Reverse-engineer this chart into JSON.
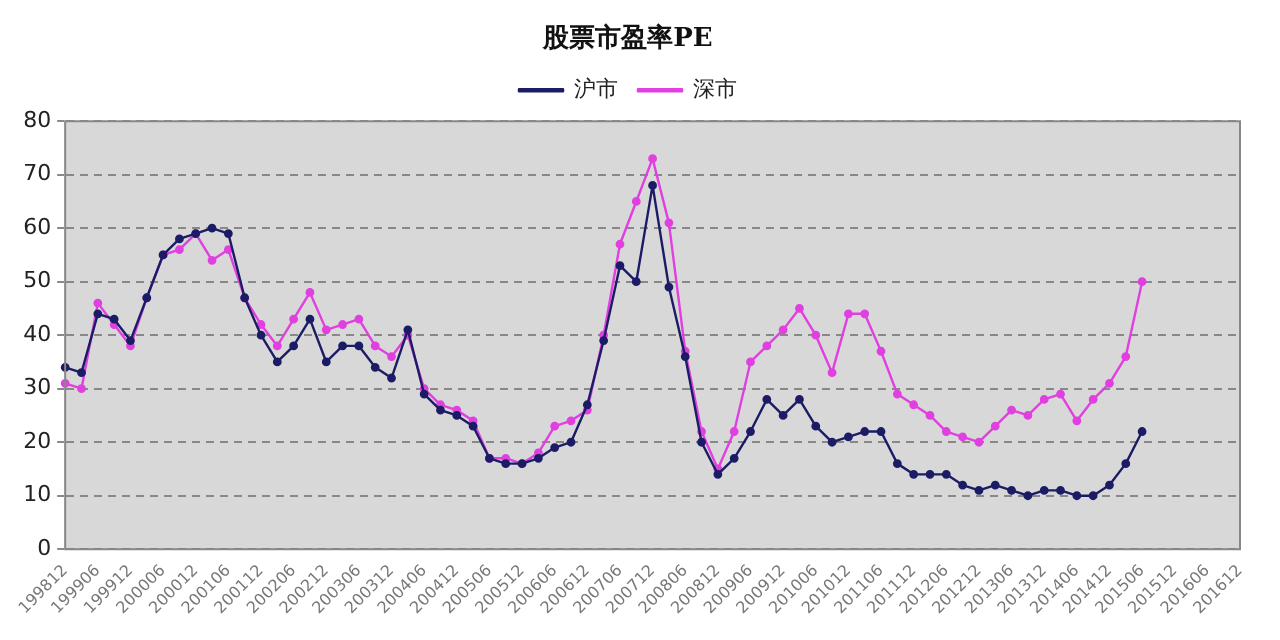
{
  "chart_data": {
    "type": "line",
    "title": "股票市盈率PE",
    "categories": [
      "199812",
      null,
      "199906",
      null,
      "199912",
      null,
      "200006",
      null,
      "200012",
      null,
      "200106",
      null,
      "200112",
      null,
      "200206",
      null,
      "200212",
      null,
      "200306",
      null,
      "200312",
      null,
      "200406",
      null,
      "200412",
      null,
      "200506",
      null,
      "200512",
      null,
      "200606",
      null,
      "200612",
      null,
      "200706",
      null,
      "200712",
      null,
      "200806",
      null,
      "200812",
      null,
      "200906",
      null,
      "200912",
      null,
      "201006",
      null,
      "201012",
      null,
      "201106",
      null,
      "201112",
      null,
      "201206",
      null,
      "201212",
      null,
      "201306",
      null,
      "201312",
      null,
      "201406",
      null,
      "201412",
      null,
      "201506",
      null,
      "201512",
      null,
      "201606",
      null,
      "201612"
    ],
    "series": [
      {
        "name": "沪市",
        "color": "#1c1c66",
        "values": [
          34,
          33,
          44,
          43,
          39,
          47,
          55,
          58,
          59,
          60,
          59,
          47,
          40,
          35,
          38,
          43,
          35,
          38,
          38,
          34,
          32,
          41,
          29,
          26,
          25,
          23,
          17,
          16,
          16,
          17,
          19,
          20,
          27,
          39,
          53,
          50,
          68,
          49,
          36,
          20,
          14,
          17,
          22,
          28,
          25,
          28,
          23,
          20,
          21,
          22,
          22,
          16,
          14,
          14,
          14,
          12,
          11,
          12,
          11,
          10,
          11,
          11,
          10,
          10,
          12,
          16,
          22,
          null,
          null,
          null,
          null,
          null,
          null
        ]
      },
      {
        "name": "深市",
        "color": "#e040e0",
        "values": [
          31,
          30,
          46,
          42,
          38,
          47,
          55,
          56,
          59,
          54,
          56,
          47,
          42,
          38,
          43,
          48,
          41,
          42,
          43,
          38,
          36,
          40,
          30,
          27,
          26,
          24,
          17,
          17,
          16,
          18,
          23,
          24,
          26,
          40,
          57,
          65,
          73,
          61,
          37,
          22,
          15,
          22,
          35,
          38,
          41,
          45,
          40,
          33,
          44,
          44,
          37,
          29,
          27,
          25,
          22,
          21,
          20,
          23,
          26,
          25,
          28,
          29,
          24,
          28,
          31,
          36,
          50,
          null,
          null,
          null,
          null,
          null,
          null
        ]
      }
    ],
    "ylim": [
      0,
      80
    ],
    "yticks": [
      0,
      10,
      20,
      30,
      40,
      50,
      60,
      70,
      80
    ],
    "grid": "y",
    "legend": "top",
    "marker": "circle",
    "line_style": "solid"
  }
}
